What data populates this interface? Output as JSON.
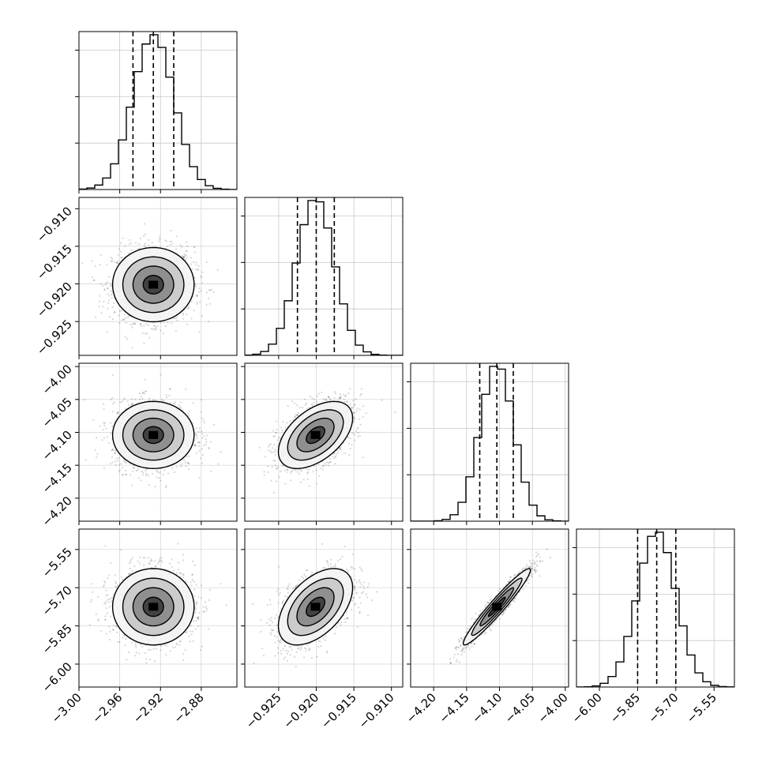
{
  "chart_data": {
    "type": "corner",
    "grid": true,
    "params": [
      {
        "mean": -2.927,
        "std": 0.02,
        "q16": -2.947,
        "q50": -2.927,
        "q84": -2.907,
        "range": [
          -3.0,
          -2.845
        ],
        "ticks": [
          {
            "value": -3.0,
            "label": "−3.00"
          },
          {
            "value": -2.96,
            "label": "−2.96"
          },
          {
            "value": -2.92,
            "label": "−2.92"
          },
          {
            "value": -2.88,
            "label": "−2.88"
          }
        ]
      },
      {
        "mean": -0.9201,
        "std": 0.00247,
        "q16": -0.9225,
        "q50": -0.92,
        "q84": -0.9176,
        "range": [
          -0.9295,
          -0.9085
        ],
        "ticks": [
          {
            "value": -0.925,
            "label": "−0.925"
          },
          {
            "value": -0.92,
            "label": "−0.920"
          },
          {
            "value": -0.915,
            "label": "−0.915"
          },
          {
            "value": -0.91,
            "label": "−0.910"
          }
        ]
      },
      {
        "mean": -4.104,
        "std": 0.0255,
        "q16": -4.13,
        "q50": -4.104,
        "q84": -4.079,
        "range": [
          -4.235,
          -3.995
        ],
        "ticks": [
          {
            "value": -4.2,
            "label": "−4.20"
          },
          {
            "value": -4.15,
            "label": "−4.15"
          },
          {
            "value": -4.1,
            "label": "−4.10"
          },
          {
            "value": -4.05,
            "label": "−4.05"
          },
          {
            "value": -4.0,
            "label": "−4.00"
          }
        ]
      },
      {
        "mean": -5.775,
        "std": 0.075,
        "q16": -5.85,
        "q50": -5.775,
        "q84": -5.7,
        "range": [
          -6.09,
          -5.47
        ],
        "ticks": [
          {
            "value": -6.0,
            "label": "−6.00"
          },
          {
            "value": -5.85,
            "label": "−5.85"
          },
          {
            "value": -5.7,
            "label": "−5.70"
          },
          {
            "value": -5.55,
            "label": "−5.55"
          }
        ]
      }
    ],
    "correlations": [
      {
        "i": 1,
        "j": 0,
        "r": 0.0
      },
      {
        "i": 2,
        "j": 0,
        "r": 0.0
      },
      {
        "i": 2,
        "j": 1,
        "r": 0.5
      },
      {
        "i": 3,
        "j": 0,
        "r": 0.0
      },
      {
        "i": 3,
        "j": 1,
        "r": 0.5
      },
      {
        "i": 3,
        "j": 2,
        "r": 0.96
      }
    ],
    "contour_levels_sigma": [
      0.5,
      1.0,
      1.5,
      2.0
    ],
    "histogram_bins": 20,
    "quantile_lines": [
      0.16,
      0.5,
      0.84
    ]
  }
}
